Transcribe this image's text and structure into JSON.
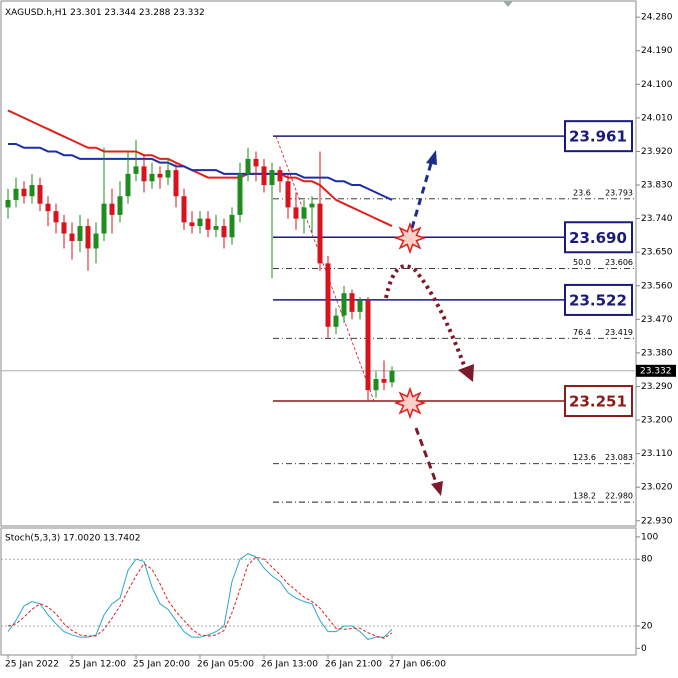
{
  "chart_data": {
    "type": "candlestick",
    "title": "XAGUSD.h,H1",
    "categories": [
      "25 Jan 2022",
      null,
      null,
      null,
      null,
      null,
      null,
      null,
      "25 Jan 12:00",
      null,
      null,
      null,
      null,
      null,
      null,
      null,
      "25 Jan 20:00",
      null,
      null,
      null,
      null,
      null,
      null,
      null,
      "26 Jan 05:00",
      null,
      null,
      null,
      null,
      null,
      null,
      null,
      "26 Jan 13:00",
      null,
      null,
      null,
      null,
      null,
      null,
      null,
      "26 Jan 21:00",
      null,
      null,
      null,
      null,
      null,
      null,
      null,
      "27 Jan 06:00"
    ],
    "open": [
      23.77,
      23.79,
      23.82,
      23.8,
      23.83,
      23.78,
      23.76,
      23.73,
      23.7,
      23.68,
      23.72,
      23.66,
      23.7,
      23.78,
      23.75,
      23.8,
      23.86,
      23.88,
      23.84,
      23.86,
      23.85,
      23.87,
      23.8,
      23.73,
      23.72,
      23.74,
      23.71,
      23.72,
      23.69,
      23.75,
      23.86,
      23.9,
      23.88,
      23.83,
      23.87,
      23.84,
      23.77,
      23.74,
      23.77,
      23.78,
      23.62,
      23.45,
      23.48,
      23.54,
      23.49,
      23.52,
      23.28,
      23.31,
      23.301
    ],
    "high": [
      23.82,
      23.85,
      23.84,
      23.86,
      23.85,
      23.8,
      23.78,
      23.75,
      23.73,
      23.75,
      23.74,
      23.73,
      23.93,
      23.82,
      23.84,
      23.92,
      23.95,
      23.91,
      23.89,
      23.88,
      23.9,
      23.89,
      23.82,
      23.76,
      23.76,
      23.76,
      23.75,
      23.74,
      23.77,
      23.89,
      23.93,
      23.92,
      23.9,
      23.89,
      23.88,
      23.86,
      23.81,
      23.79,
      23.8,
      23.92,
      23.64,
      23.5,
      23.56,
      23.55,
      23.53,
      23.53,
      23.33,
      23.36,
      23.344
    ],
    "low": [
      23.74,
      23.77,
      23.78,
      23.78,
      23.76,
      23.72,
      23.7,
      23.66,
      23.63,
      23.65,
      23.6,
      23.62,
      23.68,
      23.7,
      23.73,
      23.78,
      23.84,
      23.81,
      23.82,
      23.82,
      23.83,
      23.77,
      23.71,
      23.7,
      23.7,
      23.69,
      23.69,
      23.66,
      23.67,
      23.73,
      23.84,
      23.84,
      23.81,
      23.58,
      23.81,
      23.74,
      23.71,
      23.7,
      23.7,
      23.6,
      23.42,
      23.43,
      23.46,
      23.47,
      23.47,
      23.25,
      23.26,
      23.28,
      23.288
    ],
    "close": [
      23.79,
      23.82,
      23.8,
      23.83,
      23.78,
      23.76,
      23.73,
      23.7,
      23.68,
      23.72,
      23.66,
      23.7,
      23.78,
      23.75,
      23.8,
      23.86,
      23.88,
      23.84,
      23.86,
      23.85,
      23.87,
      23.8,
      23.73,
      23.72,
      23.74,
      23.71,
      23.72,
      23.69,
      23.75,
      23.86,
      23.9,
      23.88,
      23.83,
      23.87,
      23.84,
      23.77,
      23.74,
      23.77,
      23.78,
      23.62,
      23.45,
      23.48,
      23.54,
      23.49,
      23.52,
      23.28,
      23.31,
      23.3,
      23.332
    ],
    "up_color": "#1e8c1e",
    "down_color": "#d7141e",
    "series": [
      {
        "color": "#e0201c",
        "values": [
          24.03,
          24.02,
          24.01,
          24.0,
          23.99,
          23.98,
          23.97,
          23.96,
          23.95,
          23.94,
          23.93,
          23.93,
          23.92,
          23.92,
          23.92,
          23.92,
          23.92,
          23.91,
          23.91,
          23.9,
          23.9,
          23.89,
          23.88,
          23.87,
          23.86,
          23.85,
          23.85,
          23.85,
          23.85,
          23.85,
          23.86,
          23.86,
          23.86,
          23.86,
          23.86,
          23.85,
          23.85,
          23.84,
          23.84,
          23.83,
          23.81,
          23.79,
          23.78,
          23.77,
          23.76,
          23.75,
          23.74,
          23.73,
          23.72
        ]
      },
      {
        "color": "#1c2ea8",
        "values": [
          23.94,
          23.94,
          23.93,
          23.93,
          23.93,
          23.92,
          23.92,
          23.91,
          23.91,
          23.9,
          23.9,
          23.9,
          23.9,
          23.9,
          23.9,
          23.9,
          23.9,
          23.9,
          23.9,
          23.89,
          23.89,
          23.88,
          23.88,
          23.87,
          23.87,
          23.87,
          23.87,
          23.86,
          23.86,
          23.86,
          23.86,
          23.86,
          23.86,
          23.86,
          23.86,
          23.86,
          23.86,
          23.85,
          23.85,
          23.85,
          23.85,
          23.84,
          23.84,
          23.83,
          23.83,
          23.82,
          23.81,
          23.8,
          23.79
        ]
      }
    ],
    "ylim": [
      22.916,
      24.326
    ],
    "yticks": [
      {
        "value": 24.28,
        "label": "24.280"
      },
      {
        "value": 24.19,
        "label": "24.190"
      },
      {
        "value": 24.1,
        "label": "24.100"
      },
      {
        "value": 24.01,
        "label": "24.010"
      },
      {
        "value": 23.92,
        "label": "23.920"
      },
      {
        "value": 23.83,
        "label": "23.830"
      },
      {
        "value": 23.74,
        "label": "23.740"
      },
      {
        "value": 23.65,
        "label": "23.650"
      },
      {
        "value": 23.56,
        "label": "23.560"
      },
      {
        "value": 23.47,
        "label": "23.470"
      },
      {
        "value": 23.38,
        "label": "23.380"
      },
      {
        "value": 23.29,
        "label": "23.290"
      },
      {
        "value": 23.2,
        "label": "23.200"
      },
      {
        "value": 23.11,
        "label": "23.110"
      },
      {
        "value": 23.02,
        "label": "23.020"
      },
      {
        "value": 22.93,
        "label": "22.930"
      }
    ],
    "levels": [
      {
        "value": 23.961,
        "label": "23.961",
        "color": "#1a1a7a"
      },
      {
        "value": 23.69,
        "label": "23.690",
        "color": "#1a1a7a"
      },
      {
        "value": 23.522,
        "label": "23.522",
        "color": "#1a1a7a"
      },
      {
        "value": 23.251,
        "label": "23.251",
        "color": "#8b1a1a"
      }
    ],
    "fibonacci": [
      {
        "ratio": "23.6",
        "price": 23.793
      },
      {
        "ratio": "50.0",
        "price": 23.606
      },
      {
        "ratio": "76.4",
        "price": 23.419
      },
      {
        "ratio": "123.6",
        "price": 23.083
      },
      {
        "ratio": "138.2",
        "price": {
          "value": 22.98,
          "label": "22.980"
        }
      }
    ],
    "indicator": {
      "title": "Stoch(5,3,3) 17.0020 13.7402",
      "ylim": [
        -6,
        108
      ],
      "yticks": [
        0,
        20,
        80,
        100
      ],
      "levels": [
        20,
        80
      ],
      "series": [
        {
          "color": "#2aa8c8",
          "values": [
            15,
            25,
            38,
            42,
            40,
            30,
            22,
            15,
            12,
            10,
            10,
            12,
            30,
            40,
            45,
            70,
            80,
            78,
            55,
            40,
            35,
            25,
            15,
            10,
            10,
            12,
            15,
            20,
            60,
            80,
            85,
            82,
            72,
            65,
            60,
            50,
            45,
            42,
            40,
            25,
            15,
            15,
            20,
            20,
            15,
            8,
            10,
            10,
            17.002
          ]
        },
        {
          "color": "#e0201c",
          "dashed": true,
          "values": [
            20,
            22,
            28,
            35,
            40,
            37,
            31,
            22,
            16,
            12,
            11,
            11,
            17,
            27,
            38,
            52,
            65,
            76,
            71,
            58,
            43,
            33,
            25,
            17,
            12,
            11,
            12,
            16,
            32,
            53,
            75,
            82,
            80,
            73,
            66,
            58,
            52,
            46,
            42,
            36,
            27,
            18,
            17,
            18,
            18,
            14,
            11,
            9,
            13.7402
          ]
        }
      ]
    }
  }
}
